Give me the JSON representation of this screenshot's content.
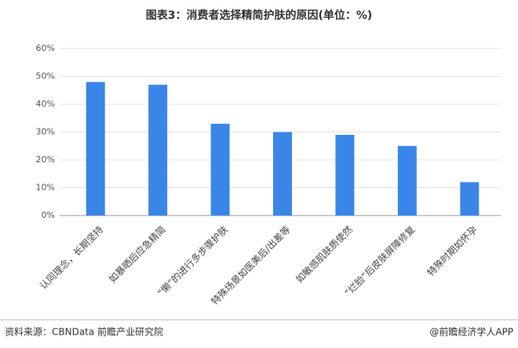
{
  "chart_data": {
    "type": "bar",
    "title": "图表3：消费者选择精简护肤的原因(单位：%)",
    "categories": [
      "认同理念，长期坚持",
      "如暴晒后应急精简",
      "“懒”的进行多步骤护肤",
      "特殊场景如医美后/出差等",
      "如敏感肌肤质使然",
      "“烂脸”后皮肤屏障修复",
      "特殊时期如怀孕"
    ],
    "values": [
      48,
      47,
      33,
      30,
      29,
      25,
      12
    ],
    "color": "#3a86e8",
    "ylim": [
      0,
      60
    ],
    "yticks": [
      {
        "value": 0,
        "label": "0%"
      },
      {
        "value": 10,
        "label": "10%"
      },
      {
        "value": 20,
        "label": "20%"
      },
      {
        "value": 30,
        "label": "30%"
      },
      {
        "value": 40,
        "label": "40%"
      },
      {
        "value": 50,
        "label": "50%"
      },
      {
        "value": 60,
        "label": "60%"
      }
    ],
    "grid": true,
    "source": "资料来源：CBNData 前瞻产业研究院",
    "credit": "@前瞻经济学人APP"
  }
}
